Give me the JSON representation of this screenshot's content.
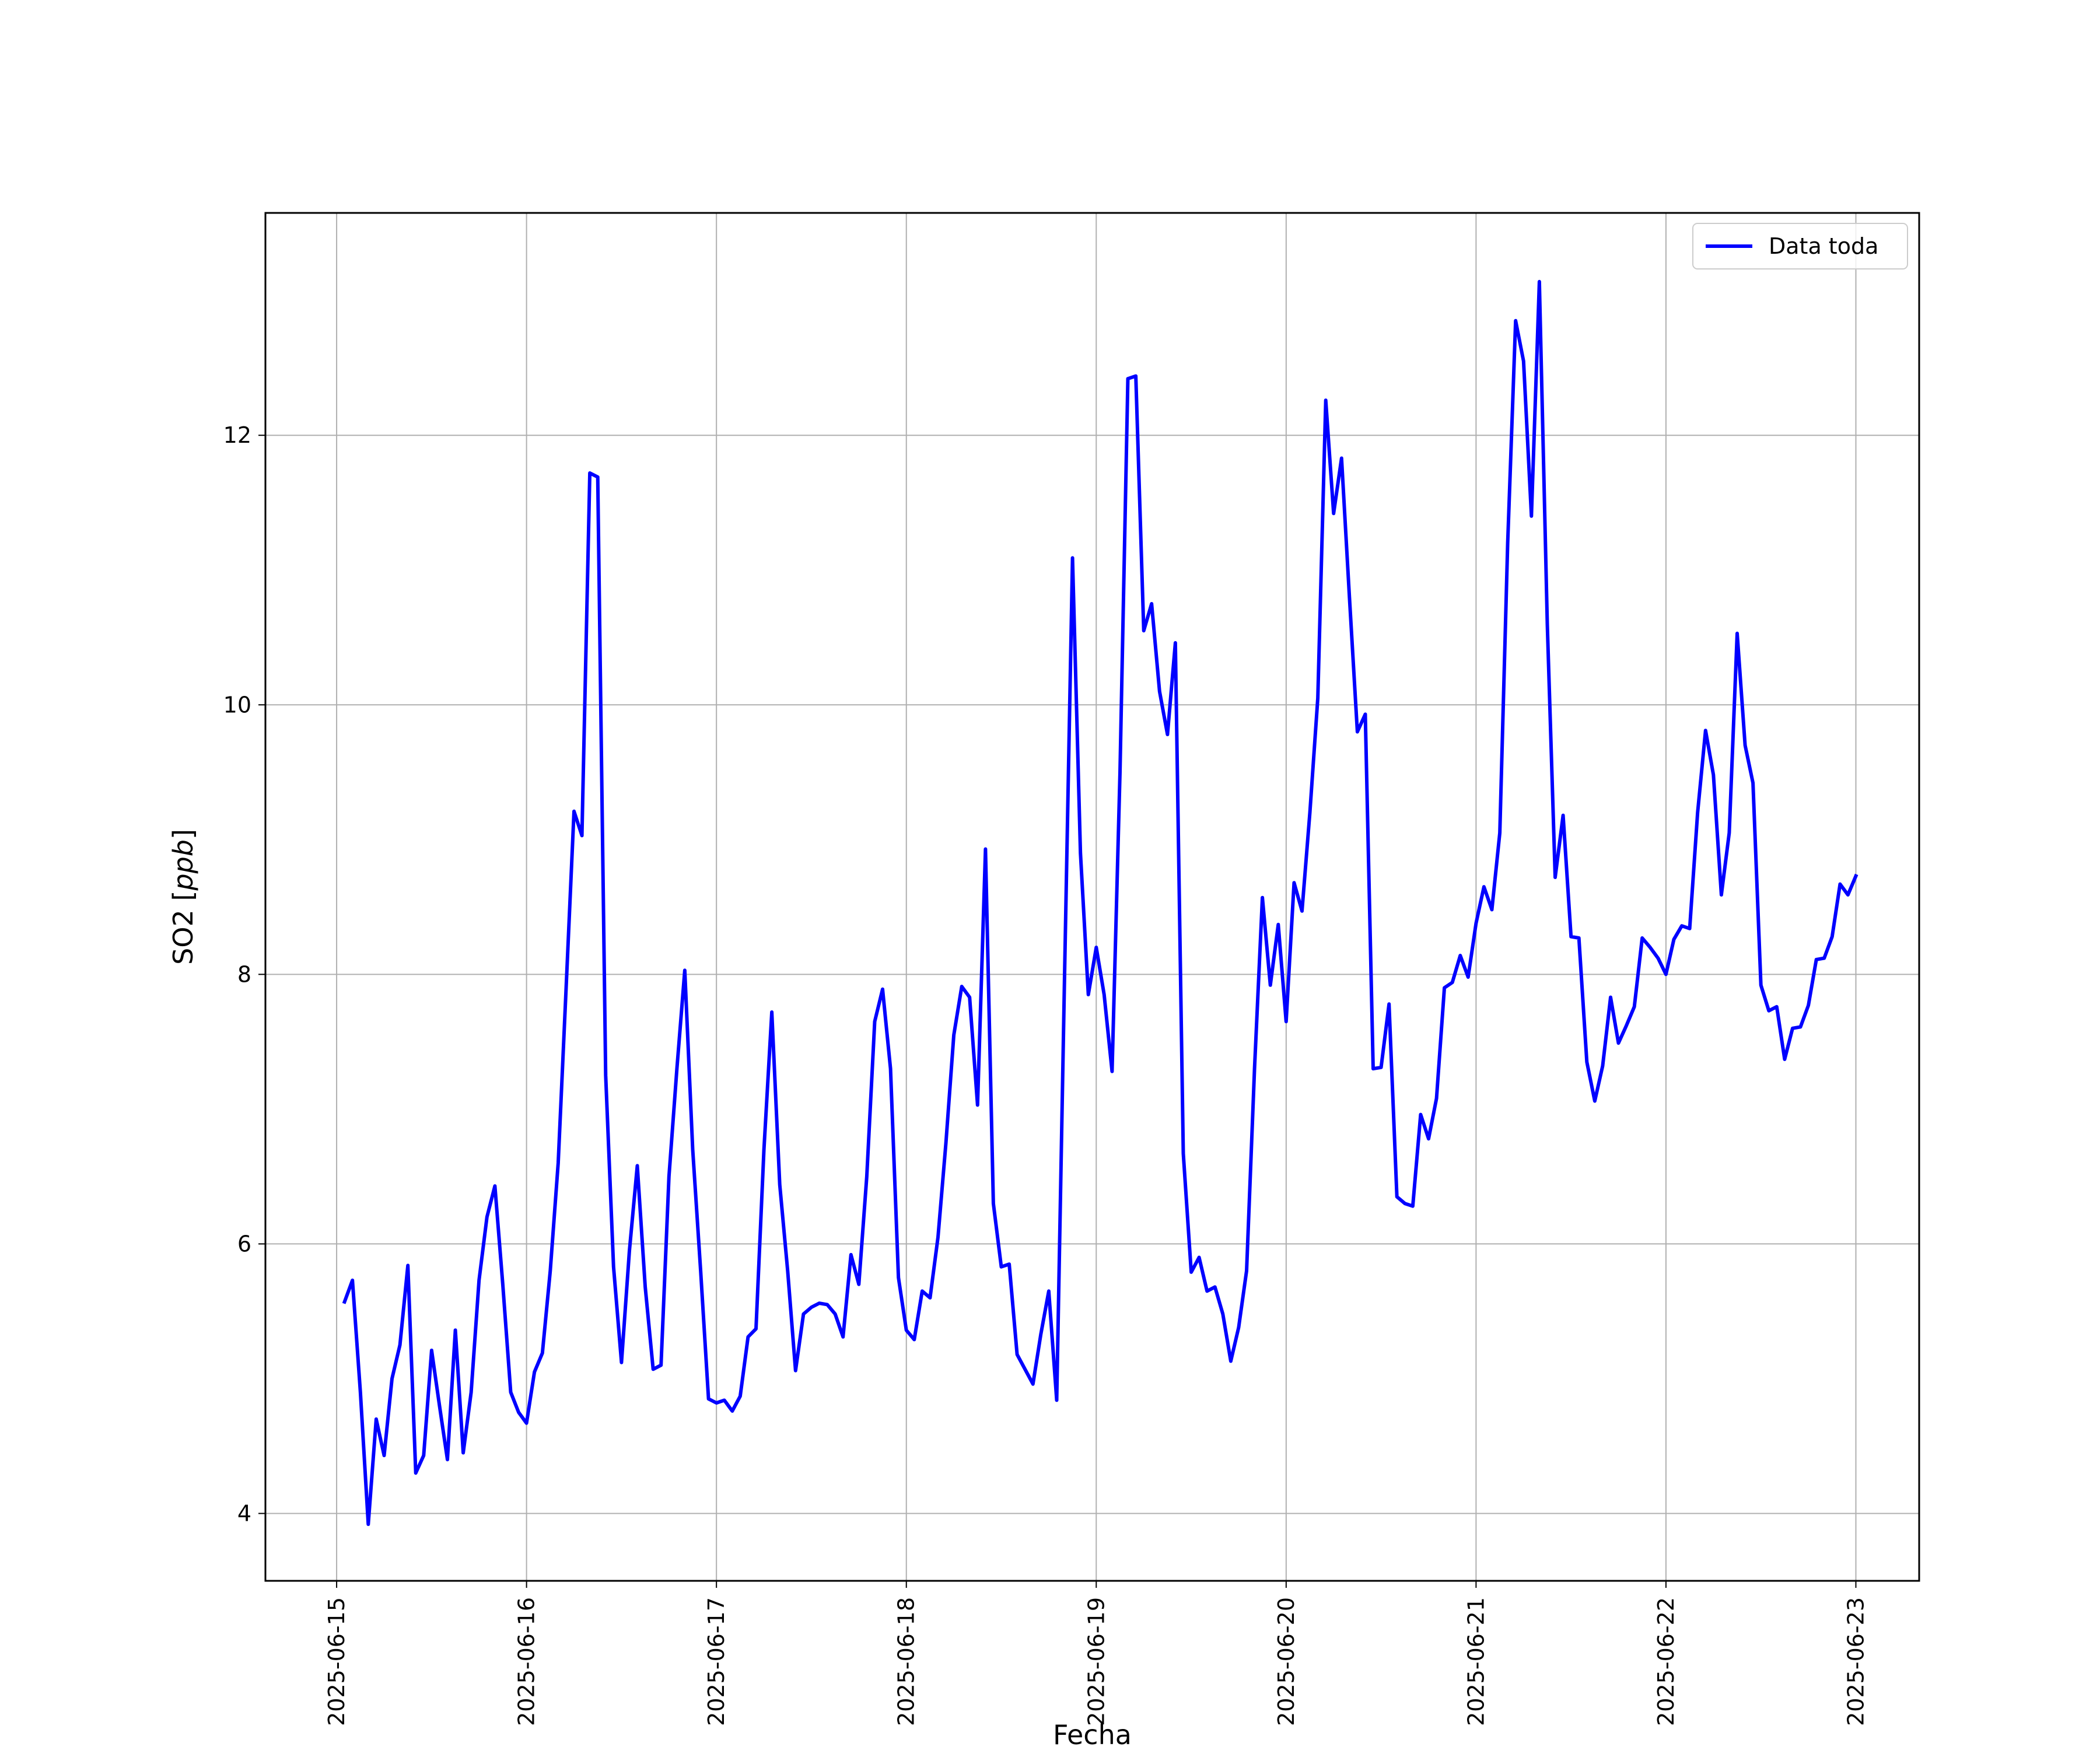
{
  "chart_data": {
    "type": "line",
    "title": "",
    "xlabel": "Fecha",
    "ylabel": "SO2 [ppb]",
    "ylabel_main": "SO2 ",
    "ylabel_unit": "ppb",
    "x_ticks": [
      "2025-06-15",
      "2025-06-16",
      "2025-06-17",
      "2025-06-18",
      "2025-06-19",
      "2025-06-20",
      "2025-06-21",
      "2025-06-22",
      "2025-06-23"
    ],
    "y_ticks": [
      4,
      6,
      8,
      10,
      12
    ],
    "ylim": [
      3.5,
      13.65
    ],
    "xlim": [
      "2025-06-14T15:00",
      "2025-06-23T08:00"
    ],
    "grid": true,
    "legend_position": "top-right",
    "line_color": "#0000ff",
    "series": [
      {
        "name": "Data toda",
        "color": "#0000ff",
        "points": [
          [
            "2025-06-15T01:00",
            5.57
          ],
          [
            "2025-06-15T02:00",
            5.73
          ],
          [
            "2025-06-15T03:00",
            4.9
          ],
          [
            "2025-06-15T04:00",
            3.92
          ],
          [
            "2025-06-15T05:00",
            4.7
          ],
          [
            "2025-06-15T06:00",
            4.43
          ],
          [
            "2025-06-15T07:00",
            5.0
          ],
          [
            "2025-06-15T08:00",
            5.25
          ],
          [
            "2025-06-15T09:00",
            5.84
          ],
          [
            "2025-06-15T10:00",
            4.3
          ],
          [
            "2025-06-15T11:00",
            4.43
          ],
          [
            "2025-06-15T12:00",
            5.21
          ],
          [
            "2025-06-15T13:00",
            4.8
          ],
          [
            "2025-06-15T14:00",
            4.4
          ],
          [
            "2025-06-15T15:00",
            5.36
          ],
          [
            "2025-06-15T16:00",
            4.45
          ],
          [
            "2025-06-15T17:00",
            4.9
          ],
          [
            "2025-06-15T18:00",
            5.73
          ],
          [
            "2025-06-15T19:00",
            6.2
          ],
          [
            "2025-06-15T20:00",
            6.43
          ],
          [
            "2025-06-15T21:00",
            5.7
          ],
          [
            "2025-06-15T22:00",
            4.9
          ],
          [
            "2025-06-15T23:00",
            4.75
          ],
          [
            "2025-06-16T00:00",
            4.67
          ],
          [
            "2025-06-16T01:00",
            5.05
          ],
          [
            "2025-06-16T02:00",
            5.19
          ],
          [
            "2025-06-16T03:00",
            5.8
          ],
          [
            "2025-06-16T04:00",
            6.6
          ],
          [
            "2025-06-16T05:00",
            7.9
          ],
          [
            "2025-06-16T06:00",
            9.21
          ],
          [
            "2025-06-16T07:00",
            9.03
          ],
          [
            "2025-06-16T08:00",
            11.72
          ],
          [
            "2025-06-16T09:00",
            11.69
          ],
          [
            "2025-06-16T10:00",
            7.25
          ],
          [
            "2025-06-16T11:00",
            5.83
          ],
          [
            "2025-06-16T12:00",
            5.12
          ],
          [
            "2025-06-16T13:00",
            5.95
          ],
          [
            "2025-06-16T14:00",
            6.58
          ],
          [
            "2025-06-16T15:00",
            5.68
          ],
          [
            "2025-06-16T16:00",
            5.07
          ],
          [
            "2025-06-16T17:00",
            5.1
          ],
          [
            "2025-06-16T18:00",
            6.5
          ],
          [
            "2025-06-16T19:00",
            7.3
          ],
          [
            "2025-06-16T20:00",
            8.03
          ],
          [
            "2025-06-16T21:00",
            6.7
          ],
          [
            "2025-06-16T22:00",
            5.8
          ],
          [
            "2025-06-16T23:00",
            4.85
          ],
          [
            "2025-06-17T00:00",
            4.82
          ],
          [
            "2025-06-17T01:00",
            4.84
          ],
          [
            "2025-06-17T02:00",
            4.76
          ],
          [
            "2025-06-17T03:00",
            4.87
          ],
          [
            "2025-06-17T04:00",
            5.31
          ],
          [
            "2025-06-17T05:00",
            5.37
          ],
          [
            "2025-06-17T06:00",
            6.7
          ],
          [
            "2025-06-17T07:00",
            7.72
          ],
          [
            "2025-06-17T08:00",
            6.44
          ],
          [
            "2025-06-17T09:00",
            5.8
          ],
          [
            "2025-06-17T10:00",
            5.06
          ],
          [
            "2025-06-17T11:00",
            5.48
          ],
          [
            "2025-06-17T12:00",
            5.53
          ],
          [
            "2025-06-17T13:00",
            5.56
          ],
          [
            "2025-06-17T14:00",
            5.55
          ],
          [
            "2025-06-17T15:00",
            5.48
          ],
          [
            "2025-06-17T16:00",
            5.31
          ],
          [
            "2025-06-17T17:00",
            5.92
          ],
          [
            "2025-06-17T18:00",
            5.7
          ],
          [
            "2025-06-17T19:00",
            6.5
          ],
          [
            "2025-06-17T20:00",
            7.65
          ],
          [
            "2025-06-17T21:00",
            7.89
          ],
          [
            "2025-06-17T22:00",
            7.3
          ],
          [
            "2025-06-17T23:00",
            5.75
          ],
          [
            "2025-06-18T00:00",
            5.36
          ],
          [
            "2025-06-18T01:00",
            5.29
          ],
          [
            "2025-06-18T02:00",
            5.65
          ],
          [
            "2025-06-18T03:00",
            5.6
          ],
          [
            "2025-06-18T04:00",
            6.05
          ],
          [
            "2025-06-18T05:00",
            6.75
          ],
          [
            "2025-06-18T06:00",
            7.55
          ],
          [
            "2025-06-18T07:00",
            7.91
          ],
          [
            "2025-06-18T08:00",
            7.83
          ],
          [
            "2025-06-18T09:00",
            7.03
          ],
          [
            "2025-06-18T10:00",
            8.93
          ],
          [
            "2025-06-18T11:00",
            6.3
          ],
          [
            "2025-06-18T12:00",
            5.83
          ],
          [
            "2025-06-18T13:00",
            5.85
          ],
          [
            "2025-06-18T14:00",
            5.18
          ],
          [
            "2025-06-18T15:00",
            5.07
          ],
          [
            "2025-06-18T16:00",
            4.96
          ],
          [
            "2025-06-18T17:00",
            5.33
          ],
          [
            "2025-06-18T18:00",
            5.65
          ],
          [
            "2025-06-18T19:00",
            4.84
          ],
          [
            "2025-06-18T20:00",
            8.0
          ],
          [
            "2025-06-18T21:00",
            11.09
          ],
          [
            "2025-06-18T22:00",
            8.9
          ],
          [
            "2025-06-18T23:00",
            7.85
          ],
          [
            "2025-06-19T00:00",
            8.2
          ],
          [
            "2025-06-19T01:00",
            7.85
          ],
          [
            "2025-06-19T02:00",
            7.28
          ],
          [
            "2025-06-19T03:00",
            9.5
          ],
          [
            "2025-06-19T04:00",
            12.42
          ],
          [
            "2025-06-19T05:00",
            12.44
          ],
          [
            "2025-06-19T06:00",
            10.55
          ],
          [
            "2025-06-19T07:00",
            10.75
          ],
          [
            "2025-06-19T08:00",
            10.1
          ],
          [
            "2025-06-19T09:00",
            9.78
          ],
          [
            "2025-06-19T10:00",
            10.46
          ],
          [
            "2025-06-19T11:00",
            6.67
          ],
          [
            "2025-06-19T12:00",
            5.79
          ],
          [
            "2025-06-19T13:00",
            5.9
          ],
          [
            "2025-06-19T14:00",
            5.65
          ],
          [
            "2025-06-19T15:00",
            5.68
          ],
          [
            "2025-06-19T16:00",
            5.48
          ],
          [
            "2025-06-19T17:00",
            5.13
          ],
          [
            "2025-06-19T18:00",
            5.38
          ],
          [
            "2025-06-19T19:00",
            5.8
          ],
          [
            "2025-06-19T20:00",
            7.3
          ],
          [
            "2025-06-19T21:00",
            8.57
          ],
          [
            "2025-06-19T22:00",
            7.92
          ],
          [
            "2025-06-19T23:00",
            8.37
          ],
          [
            "2025-06-20T00:00",
            7.65
          ],
          [
            "2025-06-20T01:00",
            8.68
          ],
          [
            "2025-06-20T02:00",
            8.47
          ],
          [
            "2025-06-20T03:00",
            9.2
          ],
          [
            "2025-06-20T04:00",
            10.05
          ],
          [
            "2025-06-20T05:00",
            12.26
          ],
          [
            "2025-06-20T06:00",
            11.42
          ],
          [
            "2025-06-20T07:00",
            11.83
          ],
          [
            "2025-06-20T08:00",
            10.8
          ],
          [
            "2025-06-20T09:00",
            9.8
          ],
          [
            "2025-06-20T10:00",
            9.93
          ],
          [
            "2025-06-20T11:00",
            7.3
          ],
          [
            "2025-06-20T12:00",
            7.31
          ],
          [
            "2025-06-20T13:00",
            7.78
          ],
          [
            "2025-06-20T14:00",
            6.35
          ],
          [
            "2025-06-20T15:00",
            6.3
          ],
          [
            "2025-06-20T16:00",
            6.28
          ],
          [
            "2025-06-20T17:00",
            6.96
          ],
          [
            "2025-06-20T18:00",
            6.78
          ],
          [
            "2025-06-20T19:00",
            7.08
          ],
          [
            "2025-06-20T20:00",
            7.9
          ],
          [
            "2025-06-20T21:00",
            7.94
          ],
          [
            "2025-06-20T22:00",
            8.14
          ],
          [
            "2025-06-20T23:00",
            7.98
          ],
          [
            "2025-06-21T00:00",
            8.38
          ],
          [
            "2025-06-21T01:00",
            8.65
          ],
          [
            "2025-06-21T02:00",
            8.48
          ],
          [
            "2025-06-21T03:00",
            9.05
          ],
          [
            "2025-06-21T04:00",
            11.2
          ],
          [
            "2025-06-21T05:00",
            12.85
          ],
          [
            "2025-06-21T06:00",
            12.55
          ],
          [
            "2025-06-21T07:00",
            11.4
          ],
          [
            "2025-06-21T08:00",
            13.14
          ],
          [
            "2025-06-21T09:00",
            10.6
          ],
          [
            "2025-06-21T10:00",
            8.72
          ],
          [
            "2025-06-21T11:00",
            9.18
          ],
          [
            "2025-06-21T12:00",
            8.28
          ],
          [
            "2025-06-21T13:00",
            8.27
          ],
          [
            "2025-06-21T14:00",
            7.35
          ],
          [
            "2025-06-21T15:00",
            7.06
          ],
          [
            "2025-06-21T16:00",
            7.32
          ],
          [
            "2025-06-21T17:00",
            7.83
          ],
          [
            "2025-06-21T18:00",
            7.49
          ],
          [
            "2025-06-21T19:00",
            7.62
          ],
          [
            "2025-06-21T20:00",
            7.76
          ],
          [
            "2025-06-21T21:00",
            8.27
          ],
          [
            "2025-06-21T22:00",
            8.2
          ],
          [
            "2025-06-21T23:00",
            8.12
          ],
          [
            "2025-06-22T00:00",
            8.0
          ],
          [
            "2025-06-22T01:00",
            8.26
          ],
          [
            "2025-06-22T02:00",
            8.36
          ],
          [
            "2025-06-22T03:00",
            8.34
          ],
          [
            "2025-06-22T04:00",
            9.2
          ],
          [
            "2025-06-22T05:00",
            9.81
          ],
          [
            "2025-06-22T06:00",
            9.48
          ],
          [
            "2025-06-22T07:00",
            8.59
          ],
          [
            "2025-06-22T08:00",
            9.05
          ],
          [
            "2025-06-22T09:00",
            10.53
          ],
          [
            "2025-06-22T10:00",
            9.7
          ],
          [
            "2025-06-22T11:00",
            9.42
          ],
          [
            "2025-06-22T12:00",
            7.92
          ],
          [
            "2025-06-22T13:00",
            7.73
          ],
          [
            "2025-06-22T14:00",
            7.76
          ],
          [
            "2025-06-22T15:00",
            7.37
          ],
          [
            "2025-06-22T16:00",
            7.6
          ],
          [
            "2025-06-22T17:00",
            7.61
          ],
          [
            "2025-06-22T18:00",
            7.77
          ],
          [
            "2025-06-22T19:00",
            8.11
          ],
          [
            "2025-06-22T20:00",
            8.12
          ],
          [
            "2025-06-22T21:00",
            8.28
          ],
          [
            "2025-06-22T22:00",
            8.67
          ],
          [
            "2025-06-22T23:00",
            8.59
          ],
          [
            "2025-06-23T00:00",
            8.73
          ]
        ]
      }
    ]
  },
  "colors": {
    "line": "#0000ff",
    "grid": "#b0b0b0",
    "axes": "#000000",
    "legend_border": "#cccccc"
  }
}
